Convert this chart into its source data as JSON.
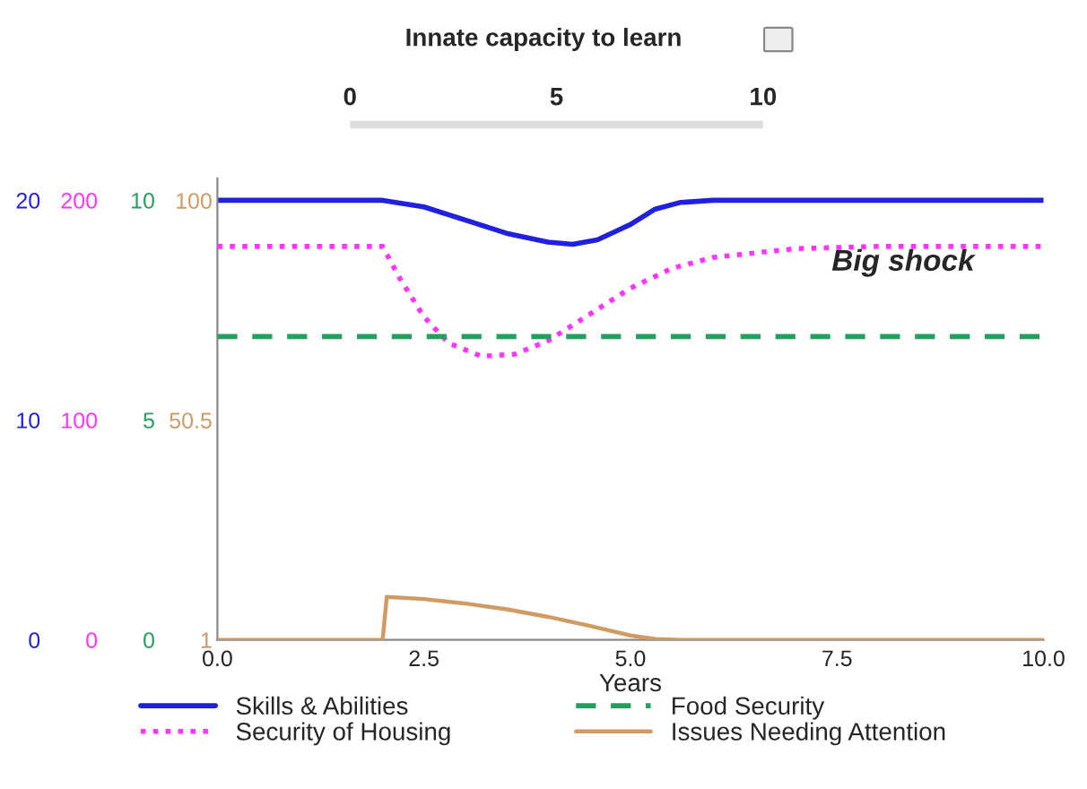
{
  "chart_data": [
    {
      "type": "other",
      "title": "Innate capacity to learn",
      "annotations": [
        "0",
        "5",
        "10"
      ]
    },
    {
      "type": "line",
      "xlabel": "Years",
      "xlim": [
        0,
        10
      ],
      "xticks": [
        {
          "value": 0,
          "label": "0.0"
        },
        {
          "value": 2.5,
          "label": "2.5"
        },
        {
          "value": 5,
          "label": "5.0"
        },
        {
          "value": 7.5,
          "label": "7.5"
        },
        {
          "value": 10,
          "label": "10.0"
        }
      ],
      "ylim": [
        0,
        21
      ],
      "yticks": [
        0,
        10,
        20
      ],
      "y2lim": [
        0,
        210
      ],
      "y2ticks": [
        0,
        100,
        200
      ],
      "y3lim": [
        0,
        10.5
      ],
      "y3ticks": [
        0,
        5,
        10
      ],
      "legend": "bottom",
      "grid": false,
      "annotations": [
        "Big shock"
      ],
      "series": [
        {
          "name": "Skills & Abilities",
          "color": "#2020e0",
          "line_style": "solid",
          "x": [
            0,
            2.0,
            2.5,
            3.0,
            3.5,
            4.0,
            4.3,
            4.6,
            5.0,
            5.3,
            5.6,
            6.0,
            7.0,
            10
          ],
          "values": [
            20,
            20,
            19.7,
            19.1,
            18.5,
            18.1,
            18.0,
            18.2,
            18.9,
            19.6,
            19.9,
            20,
            20,
            20
          ]
        },
        {
          "name": "Security of Housing",
          "color": "#ff33ff",
          "line_style": "dotted",
          "axis": "y2",
          "x": [
            0,
            2.0,
            2.2,
            2.5,
            2.8,
            3.2,
            3.6,
            4.0,
            4.5,
            5.0,
            5.5,
            6.0,
            6.5,
            7.0,
            8.0,
            10
          ],
          "values": [
            179,
            179,
            165,
            147,
            135,
            129,
            130,
            136,
            148,
            160,
            169,
            174,
            176,
            178,
            179,
            179
          ]
        },
        {
          "name": "Food Security",
          "color": "#22a060",
          "line_style": "dashed",
          "axis": "y3",
          "x": [
            0,
            10
          ],
          "values": [
            6.9,
            6.9
          ]
        }
      ]
    },
    {
      "type": "line",
      "xlim": [
        0,
        10
      ],
      "ylim": [
        1,
        105
      ],
      "yticks": [
        1,
        50.5,
        100
      ],
      "tick_labels": "y",
      "legend": "bottom",
      "series": [
        {
          "name": "Issues Needing Attention",
          "color": "#d09a60",
          "line_style": "solid",
          "x": [
            0,
            2.0,
            2.05,
            2.5,
            3.0,
            3.5,
            4.0,
            4.5,
            5.0,
            5.3,
            5.6,
            10
          ],
          "values": [
            1,
            1,
            10.7,
            10.2,
            9.2,
            7.9,
            6.2,
            4.2,
            2.0,
            1.2,
            1,
            1
          ]
        }
      ]
    }
  ]
}
